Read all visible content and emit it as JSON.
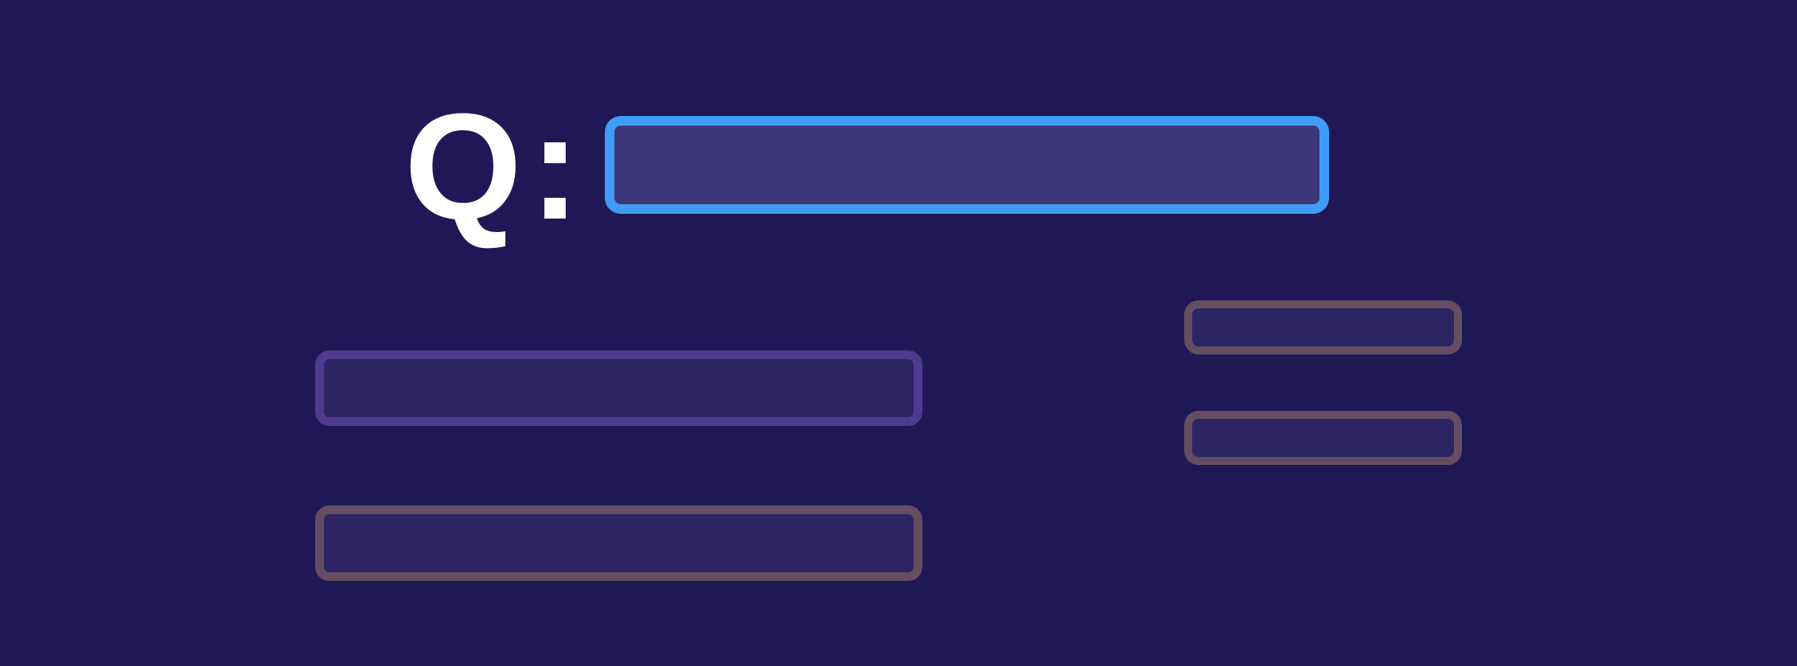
{
  "question": {
    "label": "Q:",
    "value": ""
  },
  "answers": [
    {
      "value": ""
    },
    {
      "value": ""
    },
    {
      "value": ""
    },
    {
      "value": ""
    }
  ],
  "colors": {
    "background": "#201856",
    "question_border": "#3f9cf7",
    "question_fill": "#3e387a",
    "answer_border_purple": "#4e3a8f",
    "answer_border_brown": "#654e61",
    "answer_fill": "#2d2463",
    "label_text": "#ffffff"
  }
}
